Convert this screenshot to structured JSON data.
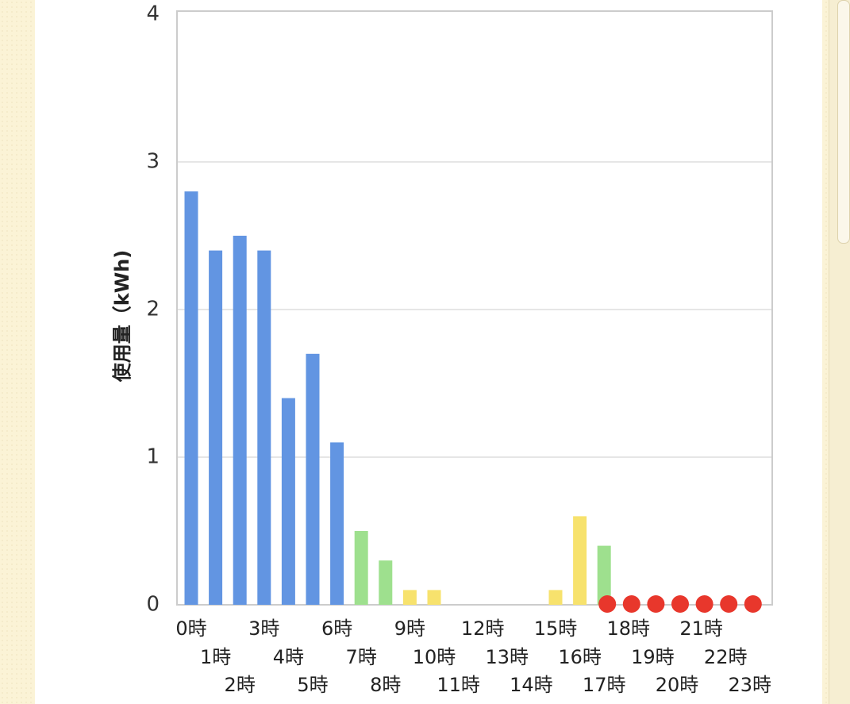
{
  "colors": {
    "background": "#fbf3d6",
    "panel": "#ffffff",
    "grid": "#e6e6e6",
    "blue": "#6295e2",
    "green": "#9ee08e",
    "yellow": "#f7e26d",
    "red": "#e8372c"
  },
  "chart_data": {
    "type": "bar",
    "ylabel": "使用量（kWh)",
    "ylim": [
      0,
      4
    ],
    "yticks": [
      "0",
      "1",
      "2",
      "3",
      "4"
    ],
    "grid": true,
    "categories": [
      "0時",
      "1時",
      "2時",
      "3時",
      "4時",
      "5時",
      "6時",
      "7時",
      "8時",
      "9時",
      "10時",
      "11時",
      "12時",
      "13時",
      "14時",
      "15時",
      "16時",
      "17時",
      "18時",
      "19時",
      "20時",
      "21時",
      "22時",
      "23時"
    ],
    "values": [
      2.8,
      2.4,
      2.5,
      2.4,
      1.4,
      1.7,
      1.1,
      0.5,
      0.3,
      0.1,
      0.1,
      0,
      0,
      0,
      0,
      0.1,
      0.6,
      0.4,
      null,
      null,
      null,
      null,
      null,
      null
    ],
    "bar_colors": [
      "blue",
      "blue",
      "blue",
      "blue",
      "blue",
      "blue",
      "blue",
      "green",
      "green",
      "yellow",
      "yellow",
      "yellow",
      "yellow",
      "yellow",
      "yellow",
      "yellow",
      "yellow",
      "green",
      "red",
      "red",
      "red",
      "red",
      "red",
      "red"
    ],
    "markers": {
      "categories": [
        "17時",
        "18時",
        "19時",
        "20時",
        "21時",
        "22時",
        "23時"
      ],
      "color": "red",
      "shape": "dot"
    }
  }
}
